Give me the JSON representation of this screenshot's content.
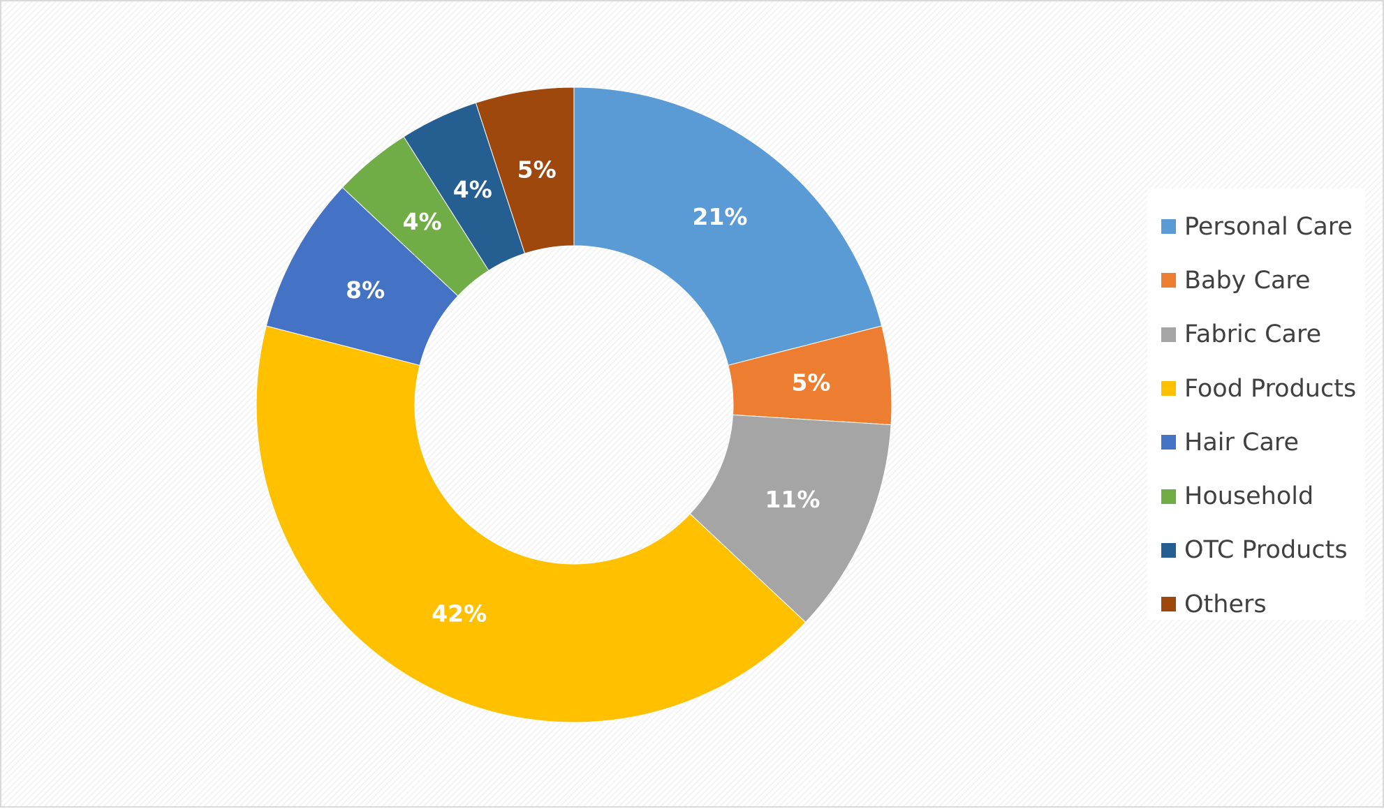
{
  "chart_data": {
    "type": "pie",
    "subtype": "donut",
    "title": "",
    "legend_position": "right",
    "slices": [
      {
        "name": "Personal Care",
        "value": 21,
        "label": "21%",
        "color": "#5B9BD5"
      },
      {
        "name": "Baby Care",
        "value": 5,
        "label": "5%",
        "color": "#ED7D31"
      },
      {
        "name": "Fabric Care",
        "value": 11,
        "label": "11%",
        "color": "#A5A5A5"
      },
      {
        "name": "Food Products",
        "value": 42,
        "label": "42%",
        "color": "#FFC000"
      },
      {
        "name": "Hair Care",
        "value": 8,
        "label": "8%",
        "color": "#4472C4"
      },
      {
        "name": "Household",
        "value": 4,
        "label": "4%",
        "color": "#70AD47"
      },
      {
        "name": "OTC Products",
        "value": 4,
        "label": "4%",
        "color": "#255E91"
      },
      {
        "name": "Others",
        "value": 5,
        "label": "5%",
        "color": "#9E480E"
      }
    ]
  }
}
